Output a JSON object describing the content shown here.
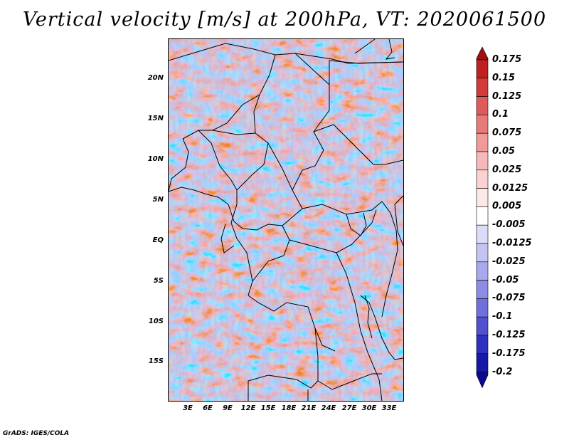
{
  "title": "Vertical velocity [m/s] at 200hPa, VT: 2020061500",
  "credit": "GrADS: IGES/COLA",
  "map": {
    "variable": "Vertical velocity",
    "units": "m/s",
    "level": "200hPa",
    "valid_time": "2020061500",
    "lat_labels": [
      "20N",
      "15N",
      "10N",
      "5N",
      "EQ",
      "5S",
      "10S",
      "15S"
    ],
    "lon_labels": [
      "3E",
      "6E",
      "9E",
      "12E",
      "15E",
      "18E",
      "21E",
      "24E",
      "27E",
      "30E",
      "33E"
    ]
  },
  "colorbar": {
    "levels": [
      "0.175",
      "0.15",
      "0.125",
      "0.1",
      "0.075",
      "0.05",
      "0.025",
      "0.0125",
      "0.005",
      "-0.005",
      "-0.0125",
      "-0.025",
      "-0.05",
      "-0.075",
      "-0.1",
      "-0.125",
      "-0.175",
      "-0.2"
    ],
    "colors": [
      "#a01010",
      "#c02020",
      "#d43a3a",
      "#e05a5a",
      "#e87a7a",
      "#f09a9a",
      "#f6b8b8",
      "#fad2d2",
      "#fde8e8",
      "#ffffff",
      "#dcdcf8",
      "#c4c4f2",
      "#a8a8ec",
      "#8c8ce4",
      "#7070dc",
      "#5050d0",
      "#3030c0",
      "#1818a8",
      "#0a0a90"
    ]
  }
}
